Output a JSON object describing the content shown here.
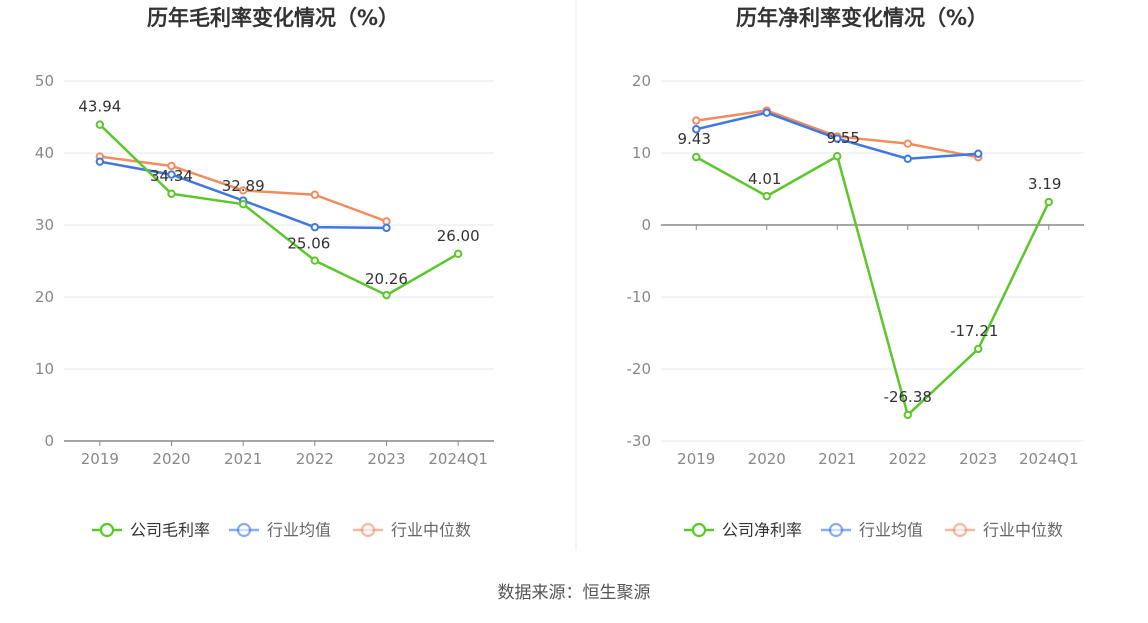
{
  "source_label": "数据来源：恒生聚源",
  "chart_data": [
    {
      "type": "line",
      "title": "历年毛利率变化情况（%）",
      "categories": [
        "2019",
        "2020",
        "2021",
        "2022",
        "2023",
        "2024Q1"
      ],
      "ylim": [
        0,
        50
      ],
      "yticks": [
        0,
        10,
        20,
        30,
        40,
        50
      ],
      "grid": true,
      "legend_position": "bottom",
      "series": [
        {
          "name": "公司毛利率",
          "color": "#5cc72b",
          "values": [
            43.94,
            34.34,
            32.89,
            25.06,
            20.26,
            26.0
          ],
          "labels": [
            "43.94",
            "34.34",
            "32.89",
            "25.06",
            "20.26",
            "26.00"
          ]
        },
        {
          "name": "行业均值",
          "color": "#3f78e0",
          "values": [
            38.8,
            37.0,
            33.4,
            29.7,
            29.6,
            null
          ]
        },
        {
          "name": "行业中位数",
          "color": "#f28c5f",
          "values": [
            39.5,
            38.2,
            34.8,
            34.2,
            30.5,
            null
          ]
        }
      ]
    },
    {
      "type": "line",
      "title": "历年净利率变化情况（%）",
      "categories": [
        "2019",
        "2020",
        "2021",
        "2022",
        "2023",
        "2024Q1"
      ],
      "ylim": [
        -30,
        20
      ],
      "yticks": [
        -30,
        -20,
        -10,
        0,
        10,
        20
      ],
      "grid": true,
      "legend_position": "bottom",
      "series": [
        {
          "name": "公司净利率",
          "color": "#5cc72b",
          "values": [
            9.43,
            4.01,
            9.55,
            -26.38,
            -17.21,
            3.19
          ],
          "labels": [
            "9.43",
            "4.01",
            "9.55",
            "-26.38",
            "-17.21",
            "3.19"
          ]
        },
        {
          "name": "行业均值",
          "color": "#3f78e0",
          "values": [
            13.3,
            15.6,
            12.0,
            9.2,
            9.9,
            null
          ]
        },
        {
          "name": "行业中位数",
          "color": "#f28c5f",
          "values": [
            14.5,
            15.9,
            12.3,
            11.3,
            9.4,
            null
          ]
        }
      ]
    }
  ]
}
